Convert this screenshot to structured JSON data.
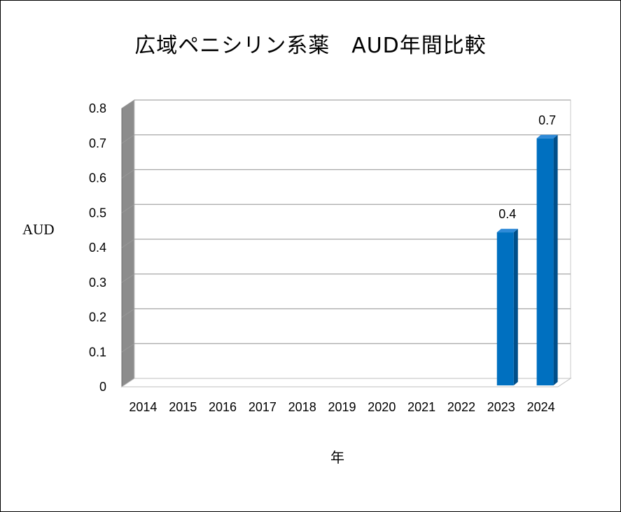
{
  "chart_data": {
    "type": "bar",
    "title": "広域ペニシリン系薬　AUD年間比較",
    "xlabel": "年",
    "ylabel": "AUD",
    "categories": [
      "2014",
      "2015",
      "2016",
      "2017",
      "2018",
      "2019",
      "2020",
      "2021",
      "2022",
      "2023",
      "2024"
    ],
    "values": [
      0,
      0,
      0,
      0,
      0,
      0,
      0,
      0,
      0,
      0.44,
      0.71
    ],
    "data_labels": [
      "",
      "",
      "",
      "",
      "",
      "",
      "",
      "",
      "",
      "0.4",
      "0.7"
    ],
    "ylim": [
      0,
      0.8
    ],
    "yticks": [
      "0",
      "0.1",
      "0.2",
      "0.3",
      "0.4",
      "0.5",
      "0.6",
      "0.7",
      "0.8"
    ],
    "grid": true,
    "style": "3d-column",
    "bar_color": "#0070c0"
  }
}
